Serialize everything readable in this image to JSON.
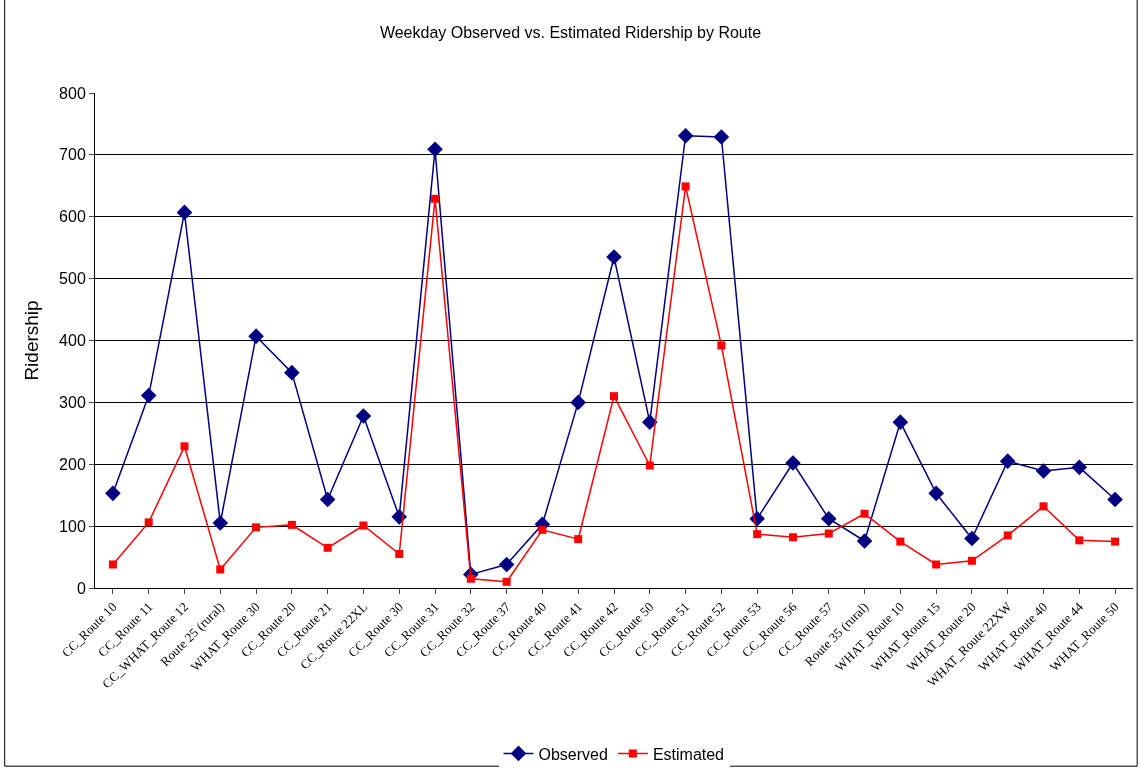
{
  "chart_data": {
    "type": "line",
    "title": "Weekday Observed vs. Estimated Ridership by Route",
    "ylabel": "Ridership",
    "categories": [
      "CC_Route 10",
      "CC_Route 11",
      "CC_WHAT_Route 12",
      "Route 25 (rural)",
      "WHAT_Route 30",
      "CC_Route 20",
      "CC_Route 21",
      "CC_Route 22XL",
      "CC_Route 30",
      "CC_Route 31",
      "CC_Route 32",
      "CC_Route 37",
      "CC_Route 40",
      "CC_Route 41",
      "CC_Route 42",
      "CC_Route 50",
      "CC_Route 51",
      "CC_Route 52",
      "CC_Route 53",
      "CC_Route 56",
      "CC_Route 57",
      "Route 35 (rural)",
      "WHAT_Route 10",
      "WHAT_Route 15",
      "WHAT_Route 20",
      "WHAT_Route 22XW",
      "WHAT_Route 40",
      "WHAT_Route 44",
      "WHAT_Route 50"
    ],
    "series": [
      {
        "name": "Observed",
        "color": "#000080",
        "marker": "diamond",
        "values": [
          153,
          311,
          607,
          105,
          407,
          348,
          143,
          278,
          115,
          709,
          22,
          38,
          103,
          300,
          535,
          268,
          731,
          729,
          112,
          202,
          112,
          76,
          268,
          153,
          80,
          205,
          189,
          195,
          143
        ]
      },
      {
        "name": "Estimated",
        "color": "#ff0000",
        "marker": "square",
        "values": [
          38,
          106,
          229,
          30,
          98,
          102,
          65,
          101,
          55,
          629,
          15,
          10,
          94,
          79,
          310,
          198,
          649,
          392,
          87,
          82,
          88,
          120,
          75,
          38,
          44,
          85,
          132,
          77,
          75
        ]
      }
    ],
    "ylim": [
      0,
      800
    ],
    "yticks": [
      0,
      100,
      200,
      300,
      400,
      500,
      600,
      700,
      800
    ],
    "grid": "y",
    "legend": "bottom",
    "line_style": "solid"
  }
}
